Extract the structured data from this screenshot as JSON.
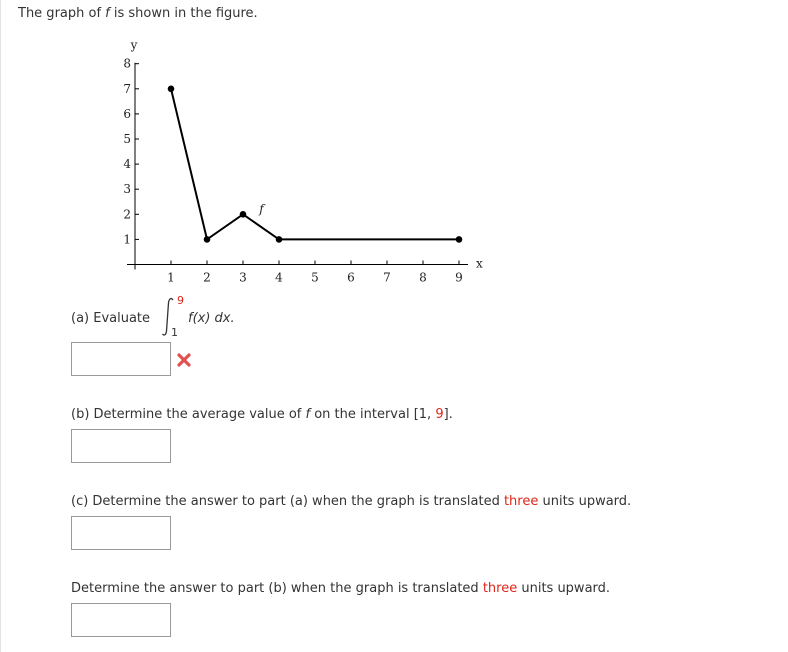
{
  "intro": {
    "pre": "The graph of ",
    "fvar": "f",
    "post": " is shown in the figure."
  },
  "chart_data": {
    "type": "line",
    "xlabel": "x",
    "ylabel": "y",
    "series_label": "f",
    "xlim": [
      0,
      9
    ],
    "ylim": [
      0,
      8
    ],
    "x_ticks": [
      1,
      2,
      3,
      4,
      5,
      6,
      7,
      8,
      9
    ],
    "y_ticks": [
      1,
      2,
      3,
      4,
      5,
      6,
      7,
      8
    ],
    "points": [
      [
        1,
        7
      ],
      [
        2,
        1
      ],
      [
        3,
        2
      ],
      [
        4,
        1
      ],
      [
        9,
        1
      ]
    ],
    "grid": false
  },
  "part_a": {
    "label": "(a) Evaluate",
    "lower": "1",
    "upper": "9",
    "integrand": "f(x) dx.",
    "value": "",
    "status_icon": "incorrect-x-icon",
    "status_color": "#e05050"
  },
  "part_b": {
    "pre": "(b) Determine the average value of ",
    "fvar": "f",
    "mid": " on the interval  [1, ",
    "nine": "9",
    "post": "].",
    "value": ""
  },
  "part_c": {
    "pre": "(c) Determine the answer to part (a) when the graph is translated ",
    "amount": "three",
    "post": " units upward.",
    "value": ""
  },
  "part_d": {
    "pre": "Determine the answer to part (b) when the graph is translated ",
    "amount": "three",
    "post": " units upward.",
    "value": ""
  },
  "colors": {
    "accent_red": "#e0261b",
    "text": "#333333"
  }
}
